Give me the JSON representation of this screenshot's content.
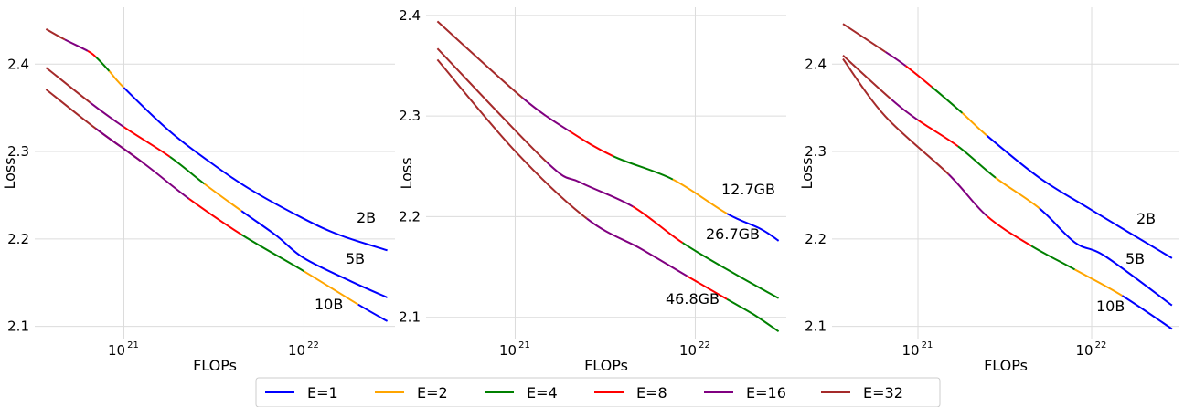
{
  "legend": {
    "placement": "bottom-center",
    "entries": [
      {
        "label": "E=1",
        "color": "#0000ff"
      },
      {
        "label": "E=2",
        "color": "#ffa500"
      },
      {
        "label": "E=4",
        "color": "#008000"
      },
      {
        "label": "E=8",
        "color": "#ff0000"
      },
      {
        "label": "E=16",
        "color": "#800080"
      },
      {
        "label": "E=32",
        "color": "#a52a2a"
      }
    ]
  },
  "chart_data": [
    {
      "type": "line",
      "xlabel": "FLOPs",
      "ylabel": "Loss",
      "xscale": "log",
      "xlim": [
        3.2e+20,
        3.2e+22
      ],
      "ylim": [
        2.085,
        2.465
      ],
      "xticks": [
        {
          "value": 1e+21,
          "label": "10",
          "exp": "21"
        },
        {
          "value": 1e+22,
          "label": "10",
          "exp": "22"
        }
      ],
      "yticks": [
        2.1,
        2.2,
        2.3,
        2.4
      ],
      "grid": true,
      "annotations": [
        "2B",
        "5B",
        "10B"
      ],
      "series": [
        {
          "annotation": "2B",
          "x": [
            3.7e+20,
            4.7e+20,
            6.3e+20,
            7e+20,
            8.3e+20,
            1e+21,
            1.8e+21,
            3e+21,
            5e+21,
            1e+22,
            1.6e+22,
            2.9e+22
          ],
          "y": [
            2.44,
            2.428,
            2.415,
            2.408,
            2.392,
            2.373,
            2.323,
            2.288,
            2.257,
            2.223,
            2.204,
            2.187
          ],
          "segments": [
            [
              "E=32",
              0,
              1
            ],
            [
              "E=16",
              1,
              2
            ],
            [
              "E=8",
              2,
              3
            ],
            [
              "E=4",
              3,
              4
            ],
            [
              "E=2",
              4,
              5
            ],
            [
              "E=1",
              5,
              11
            ]
          ]
        },
        {
          "annotation": "5B",
          "x": [
            3.7e+20,
            6.5e+20,
            1e+21,
            1.8e+21,
            2.8e+21,
            4.5e+21,
            7e+21,
            1e+22,
            1.8e+22,
            2.9e+22
          ],
          "y": [
            2.396,
            2.356,
            2.328,
            2.294,
            2.263,
            2.232,
            2.204,
            2.178,
            2.152,
            2.133
          ],
          "segments": [
            [
              "E=32",
              0,
              1
            ],
            [
              "E=16",
              1,
              2
            ],
            [
              "E=8",
              2,
              3
            ],
            [
              "E=4",
              3,
              4
            ],
            [
              "E=2",
              4,
              5
            ],
            [
              "E=1",
              5,
              9
            ]
          ]
        },
        {
          "annotation": "10B",
          "x": [
            3.7e+20,
            7e+20,
            1.3e+21,
            2.3e+21,
            4.5e+21,
            1e+22,
            2e+22,
            2.9e+22
          ],
          "y": [
            2.371,
            2.326,
            2.286,
            2.246,
            2.205,
            2.163,
            2.125,
            2.106
          ],
          "segments": [
            [
              "E=32",
              0,
              2
            ],
            [
              "E=16",
              1,
              3
            ],
            [
              "E=8",
              3,
              4
            ],
            [
              "E=4",
              4,
              5
            ],
            [
              "E=2",
              5,
              6
            ],
            [
              "E=1",
              6,
              7
            ]
          ]
        }
      ]
    },
    {
      "type": "line",
      "xlabel": "FLOPs",
      "ylabel": "Loss",
      "xscale": "log",
      "xlim": [
        3.2e+20,
        3.2e+22
      ],
      "ylim": [
        2.078,
        2.408
      ],
      "xticks": [
        {
          "value": 1e+21,
          "label": "10",
          "exp": "21"
        },
        {
          "value": 1e+22,
          "label": "10",
          "exp": "22"
        }
      ],
      "yticks": [
        2.1,
        2.2,
        2.3,
        2.4
      ],
      "grid": true,
      "annotations": [
        "12.7GB",
        "26.7GB",
        "46.8GB"
      ],
      "series": [
        {
          "annotation": "12.7GB",
          "x": [
            3.7e+20,
            1.1e+21,
            2e+21,
            3.5e+21,
            7.5e+21,
            1.5e+22,
            2.3e+22,
            2.9e+22
          ],
          "y": [
            2.394,
            2.318,
            2.285,
            2.26,
            2.237,
            2.203,
            2.188,
            2.176
          ],
          "segments": [
            [
              "E=32",
              0,
              1
            ],
            [
              "E=16",
              1,
              2
            ],
            [
              "E=8",
              2,
              3
            ],
            [
              "E=4",
              3,
              4
            ],
            [
              "E=2",
              4,
              5
            ],
            [
              "E=1",
              5,
              7
            ]
          ]
        },
        {
          "annotation": "26.7GB",
          "x": [
            3.7e+20,
            1.5e+21,
            2.3e+21,
            4.5e+21,
            8.5e+21,
            1.7e+22,
            2.9e+22
          ],
          "y": [
            2.367,
            2.254,
            2.234,
            2.21,
            2.174,
            2.142,
            2.119
          ],
          "segments": [
            [
              "E=32",
              0,
              1
            ],
            [
              "E=16",
              1,
              3
            ],
            [
              "E=8",
              3,
              4
            ],
            [
              "E=4",
              4,
              6
            ]
          ]
        },
        {
          "annotation": "46.8GB",
          "x": [
            3.7e+20,
            1e+21,
            2.5e+21,
            5e+21,
            9e+21,
            1.5e+22,
            2.1e+22,
            2.9e+22
          ],
          "y": [
            2.356,
            2.265,
            2.198,
            2.168,
            2.141,
            2.118,
            2.103,
            2.086
          ],
          "segments": [
            [
              "E=32",
              0,
              2
            ],
            [
              "E=16",
              2,
              4
            ],
            [
              "E=8",
              4,
              5
            ],
            [
              "E=4",
              5,
              7
            ]
          ]
        }
      ]
    },
    {
      "type": "line",
      "xlabel": "FLOPs",
      "ylabel": "Loss",
      "xscale": "log",
      "xlim": [
        3.2e+20,
        3.2e+22
      ],
      "ylim": [
        2.085,
        2.465
      ],
      "xticks": [
        {
          "value": 1e+21,
          "label": "10",
          "exp": "21"
        },
        {
          "value": 1e+22,
          "label": "10",
          "exp": "22"
        }
      ],
      "yticks": [
        2.1,
        2.2,
        2.3,
        2.4
      ],
      "grid": true,
      "annotations": [
        "2B",
        "5B",
        "10B"
      ],
      "series": [
        {
          "annotation": "2B",
          "x": [
            3.7e+20,
            6.5e+20,
            8.5e+20,
            1.2e+21,
            1.8e+21,
            2.5e+21,
            5e+21,
            1e+22,
            2.9e+22
          ],
          "y": [
            2.446,
            2.414,
            2.398,
            2.374,
            2.344,
            2.318,
            2.27,
            2.233,
            2.178
          ],
          "segments": [
            [
              "E=32",
              0,
              1
            ],
            [
              "E=16",
              1,
              2
            ],
            [
              "E=8",
              2,
              3
            ],
            [
              "E=4",
              3,
              4
            ],
            [
              "E=2",
              4,
              5
            ],
            [
              "E=1",
              5,
              8
            ]
          ]
        },
        {
          "annotation": "5B",
          "x": [
            3.7e+20,
            7e+20,
            1e+21,
            1.7e+21,
            2.8e+21,
            5e+21,
            8e+21,
            1.2e+22,
            2.9e+22
          ],
          "y": [
            2.41,
            2.36,
            2.336,
            2.306,
            2.27,
            2.235,
            2.196,
            2.18,
            2.124
          ],
          "segments": [
            [
              "E=32",
              0,
              1
            ],
            [
              "E=16",
              1,
              2
            ],
            [
              "E=8",
              2,
              3
            ],
            [
              "E=4",
              3,
              4
            ],
            [
              "E=2",
              4,
              5
            ],
            [
              "E=1",
              5,
              8
            ]
          ]
        },
        {
          "annotation": "10B",
          "x": [
            3.7e+20,
            6.5e+20,
            1.5e+21,
            2.5e+21,
            4.5e+21,
            8e+21,
            1.5e+22,
            2.9e+22
          ],
          "y": [
            2.406,
            2.34,
            2.274,
            2.226,
            2.192,
            2.165,
            2.135,
            2.097
          ],
          "segments": [
            [
              "E=32",
              0,
              2
            ],
            [
              "E=16",
              2,
              3
            ],
            [
              "E=8",
              3,
              4
            ],
            [
              "E=4",
              4,
              5
            ],
            [
              "E=2",
              5,
              6
            ],
            [
              "E=1",
              6,
              7
            ]
          ]
        }
      ]
    }
  ]
}
